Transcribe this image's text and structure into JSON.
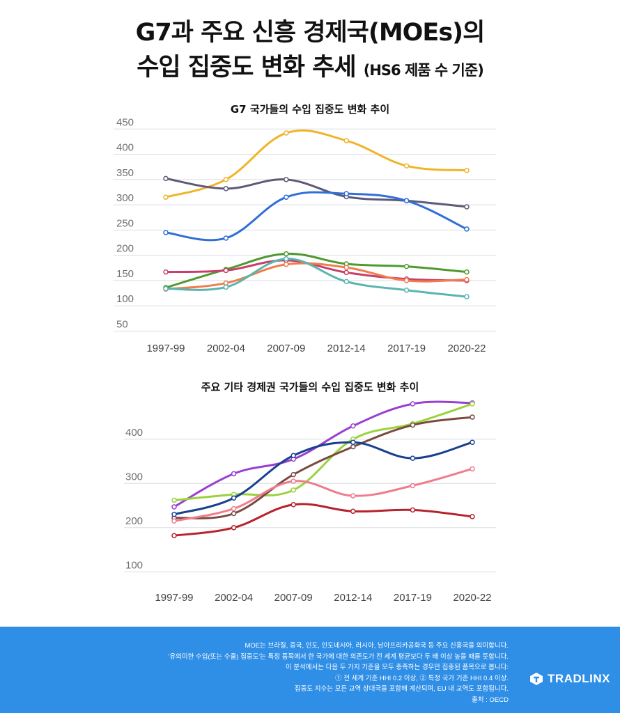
{
  "header": {
    "title_line1": "G7과 주요 신흥 경제국(MOEs)의",
    "title_line2_main": "수입 집중도 변화 추세",
    "title_line2_sub": "(HS6 제품 수 기준)"
  },
  "chart_data": [
    {
      "type": "line",
      "title": "G7 국가들의 수입 집중도 변화 추이",
      "categories": [
        "1997-99",
        "2002-04",
        "2007-09",
        "2012-14",
        "2017-19",
        "2020-22"
      ],
      "yticks": [
        50,
        100,
        150,
        200,
        250,
        300,
        350,
        400,
        450
      ],
      "ylim": [
        30,
        460
      ],
      "grid": true,
      "series": [
        {
          "color": "#f0b429",
          "values": [
            315,
            350,
            442,
            427,
            377,
            368
          ]
        },
        {
          "color": "#5c5a78",
          "values": [
            352,
            332,
            350,
            316,
            308,
            296
          ]
        },
        {
          "color": "#2f6fd6",
          "values": [
            245,
            234,
            315,
            322,
            308,
            252
          ]
        },
        {
          "color": "#4e9a2e",
          "values": [
            136,
            172,
            203,
            183,
            178,
            167
          ]
        },
        {
          "color": "#c8406a",
          "values": [
            167,
            170,
            190,
            166,
            153,
            150
          ]
        },
        {
          "color": "#ef7d4e",
          "values": [
            133,
            145,
            182,
            176,
            150,
            152
          ]
        },
        {
          "color": "#5ab5b0",
          "values": [
            134,
            137,
            193,
            148,
            131,
            118
          ]
        }
      ]
    },
    {
      "type": "line",
      "title": "주요 기타 경제권 국가들의 수입 집중도 변화 추이",
      "categories": [
        "1997-99",
        "2002-04",
        "2007-09",
        "2012-14",
        "2017-19",
        "2020-22"
      ],
      "yticks": [
        100,
        200,
        300,
        400
      ],
      "ylim": [
        80,
        480
      ],
      "grid": true,
      "series": [
        {
          "color": "#9a3fd0",
          "values": [
            247,
            322,
            355,
            430,
            480,
            482
          ]
        },
        {
          "color": "#9ad23c",
          "values": [
            262,
            275,
            285,
            400,
            435,
            480
          ]
        },
        {
          "color": "#7a4a42",
          "values": [
            222,
            232,
            320,
            383,
            432,
            450
          ]
        },
        {
          "color": "#17418f",
          "values": [
            230,
            267,
            363,
            393,
            357,
            393
          ]
        },
        {
          "color": "#ef7c8c",
          "values": [
            215,
            243,
            305,
            272,
            295,
            333
          ]
        },
        {
          "color": "#b7222c",
          "values": [
            182,
            200,
            252,
            237,
            240,
            225
          ]
        }
      ]
    }
  ],
  "footer": {
    "notes": [
      "MOE는 브라질, 중국, 인도, 인도네시아, 러시아, 남아프리카공화국 등 주요 신흥국을 의미합니다.",
      "'유의미한 수입(또는 수출) 집중도'는 특정 품목에서 한 국가에 대한 의존도가 전 세계 평균보다 두 배 이상 높을 때를 뜻합니다.",
      "이 분석에서는 다음 두 가지 기준을 모두 충족하는 경우만 집중된 품목으로 봅니다:",
      "① 전 세계 기준 HHI 0.2 이상, ② 특정 국가 기준 HHI 0.4 이상.",
      "집중도 지수는 모든 교역 상대국을 포함해 계산되며, EU 내 교역도 포함됩니다.",
      "출처 : OECD"
    ],
    "brand": "TRADLINX",
    "colors": {
      "background": "#2f8ee6",
      "text": "#ffffff"
    }
  }
}
